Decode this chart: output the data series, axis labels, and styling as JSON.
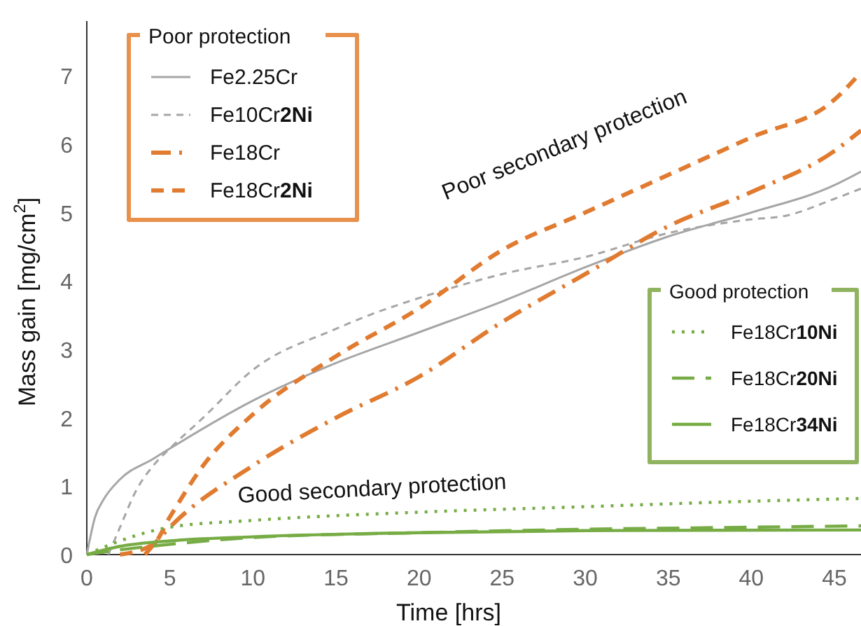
{
  "chart_data": {
    "type": "line",
    "xlabel": "Time [hrs]",
    "ylabel": "Mass gain [mg/cm$^{2}$]",
    "xlim": [
      0,
      46.6
    ],
    "ylim": [
      0,
      7.8
    ],
    "xticks": [
      0,
      5,
      10,
      15,
      20,
      25,
      30,
      35,
      40,
      45
    ],
    "yticks": [
      0,
      1,
      2,
      3,
      4,
      5,
      6,
      7
    ],
    "grid": false,
    "marker": "none",
    "legend_title": [
      "Poor protection",
      "Good protection"
    ],
    "legend": [
      "top left",
      "right"
    ],
    "annotations": [
      "Poor secondary protection",
      "Good secondary protection"
    ],
    "series": [
      {
        "name": "Fe2.25Cr",
        "color": "#a6a6a6",
        "line_style": "solid",
        "x": [
          0,
          0.5,
          1,
          2,
          4,
          5,
          10,
          15,
          20,
          25,
          30,
          35,
          40,
          45,
          46.6
        ],
        "values": [
          0,
          0.55,
          0.8,
          1.1,
          1.4,
          1.55,
          2.25,
          2.8,
          3.25,
          3.7,
          4.2,
          4.65,
          5.0,
          5.4,
          5.6
        ]
      },
      {
        "name": "Fe10Cr2Ni",
        "color": "#a6a6a6",
        "line_style": "dashed",
        "x": [
          1.3,
          2,
          3,
          4,
          5,
          7,
          10,
          15,
          17,
          20,
          25,
          30,
          35,
          40,
          42,
          45,
          46.6
        ],
        "values": [
          0,
          0.4,
          0.95,
          1.3,
          1.55,
          2.0,
          2.7,
          3.3,
          3.5,
          3.75,
          4.1,
          4.35,
          4.7,
          4.9,
          4.95,
          5.2,
          5.35
        ]
      },
      {
        "name": "Fe18Cr",
        "color": "#e07b30",
        "line_style": "dashdot",
        "x": [
          3.5,
          5,
          10,
          15,
          20,
          25,
          30,
          35,
          40,
          45,
          46.6
        ],
        "values": [
          0,
          0.4,
          1.3,
          2.0,
          2.6,
          3.4,
          4.1,
          4.8,
          5.3,
          5.9,
          6.2
        ]
      },
      {
        "name": "Fe18Cr2Ni",
        "color": "#e07b30",
        "line_style": "dashed",
        "x": [
          2,
          4,
          5,
          7,
          10,
          15,
          20,
          25,
          30,
          35,
          40,
          45,
          46.6
        ],
        "values": [
          0,
          0.15,
          0.55,
          1.3,
          2.05,
          2.9,
          3.6,
          4.45,
          5.0,
          5.55,
          6.1,
          6.65,
          7.05
        ]
      },
      {
        "name": "Fe18Cr10Ni",
        "color": "#77ac45",
        "line_style": "dotted",
        "x": [
          0,
          2,
          5,
          10,
          20,
          30,
          40,
          46.6
        ],
        "values": [
          0,
          0.2,
          0.4,
          0.5,
          0.62,
          0.7,
          0.78,
          0.82
        ]
      },
      {
        "name": "Fe18Cr20Ni",
        "color": "#77ac45",
        "line_style": "dashed",
        "x": [
          0,
          2,
          5,
          10,
          20,
          30,
          40,
          46.6
        ],
        "values": [
          0,
          0.07,
          0.15,
          0.25,
          0.32,
          0.37,
          0.4,
          0.42
        ]
      },
      {
        "name": "Fe18Cr34Ni",
        "color": "#77ac45",
        "line_style": "solid",
        "x": [
          0,
          2,
          5,
          10,
          20,
          30,
          46.6
        ],
        "values": [
          0,
          0.12,
          0.2,
          0.26,
          0.32,
          0.35,
          0.36
        ]
      }
    ]
  }
}
